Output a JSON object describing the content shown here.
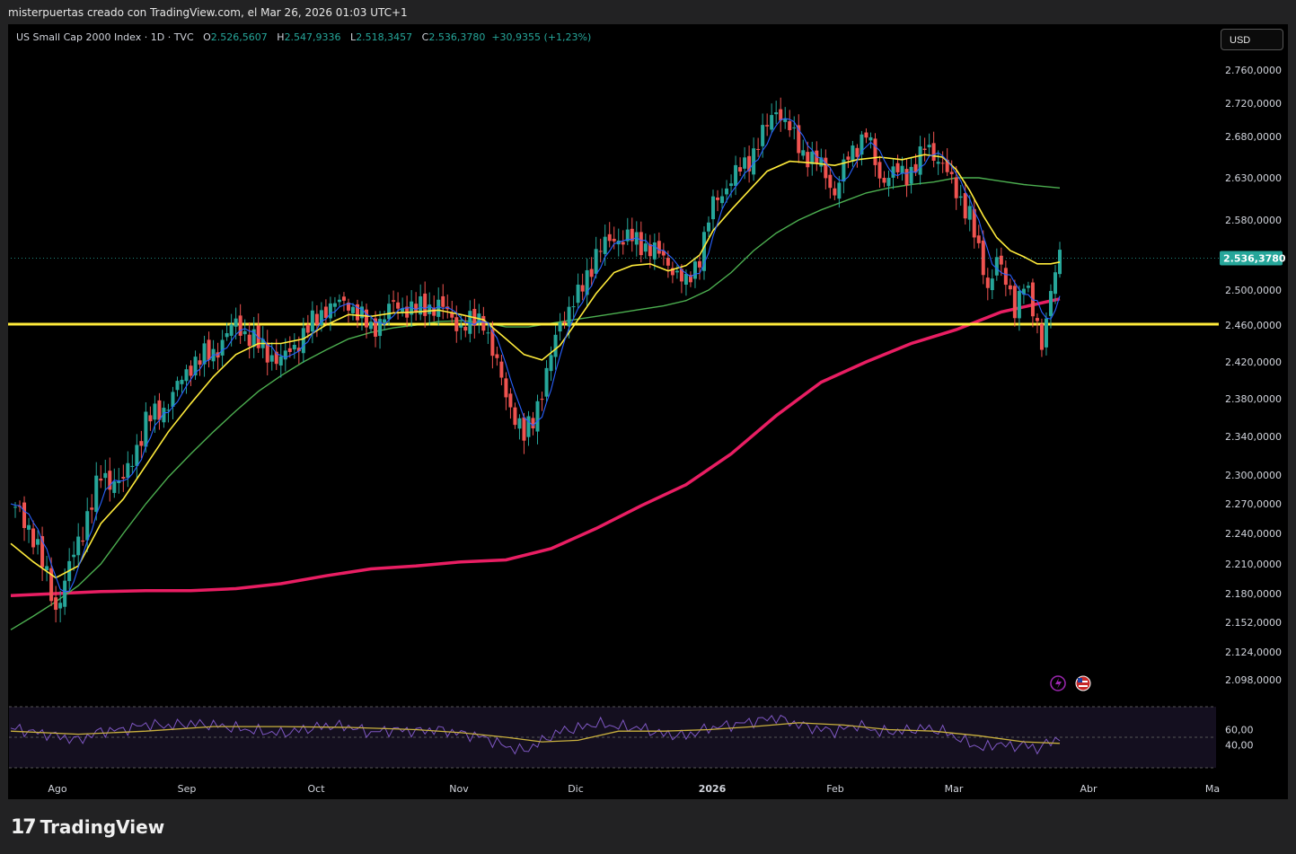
{
  "header": {
    "caption": "misterpuertas creado con TradingView.com, el Mar 26, 2026 01:03 UTC+1"
  },
  "legend": {
    "symbol": "US Small Cap 2000 Index · 1D · TVC",
    "o_label": "O",
    "o": "2.526,5607",
    "h_label": "H",
    "h": "2.547,9336",
    "l_label": "L",
    "l": "2.518,3457",
    "c_label": "C",
    "c": "2.536,3780",
    "change": "+30,9355 (+1,23%)"
  },
  "currency_button": "USD",
  "brand": {
    "name": "TradingView"
  },
  "colors": {
    "up": "#26a69a",
    "down": "#ef5350",
    "sma_short": "#2962ff",
    "sma_mid": "#ffeb3b",
    "sma_long": "#4caf50",
    "sma_200": "#e91e63",
    "support": "#ffeb3b",
    "rsi": "#7e57c2",
    "rsi_ma": "#c9b03e"
  },
  "chart_data": [
    {
      "type": "candlestick",
      "title": "US Small Cap 2000 Index",
      "yticks": [
        "2.760,0000",
        "2.720,0000",
        "2.680,0000",
        "2.630,0000",
        "2.580,0000",
        "2.500,0000",
        "2.460,0000",
        "2.420,0000",
        "2.380,0000",
        "2.340,0000",
        "2.300,0000",
        "2.270,0000",
        "2.240,0000",
        "2.210,0000",
        "2.180,0000",
        "2.152,0000",
        "2.124,0000",
        "2.098,0000"
      ],
      "ytick_values": [
        2760,
        2720,
        2680,
        2630,
        2580,
        2500,
        2460,
        2420,
        2380,
        2340,
        2300,
        2270,
        2240,
        2210,
        2180,
        2152,
        2124,
        2098
      ],
      "xticks": [
        "Ago",
        "Sep",
        "Oct",
        "Nov",
        "Dic",
        "2026",
        "Feb",
        "Mar",
        "Abr",
        "Ma"
      ],
      "ylim": [
        2080,
        2790
      ],
      "last_price_label": "2.536,3780",
      "last_price": 2536.378,
      "support_level": 2461,
      "close_points": [
        [
          0,
          2270
        ],
        [
          10,
          2240
        ],
        [
          20,
          2165
        ],
        [
          30,
          2232
        ],
        [
          40,
          2298
        ],
        [
          50,
          2292
        ],
        [
          60,
          2355
        ],
        [
          70,
          2375
        ],
        [
          80,
          2418
        ],
        [
          90,
          2430
        ],
        [
          100,
          2462
        ],
        [
          110,
          2438
        ],
        [
          120,
          2420
        ],
        [
          130,
          2450
        ],
        [
          140,
          2480
        ],
        [
          150,
          2486
        ],
        [
          160,
          2455
        ],
        [
          170,
          2482
        ],
        [
          180,
          2478
        ],
        [
          190,
          2483
        ],
        [
          200,
          2458
        ],
        [
          210,
          2468
        ],
        [
          214,
          2430
        ],
        [
          220,
          2385
        ],
        [
          228,
          2338
        ],
        [
          232,
          2360
        ],
        [
          238,
          2405
        ],
        [
          244,
          2465
        ],
        [
          252,
          2492
        ],
        [
          260,
          2542
        ],
        [
          268,
          2560
        ],
        [
          276,
          2558
        ],
        [
          284,
          2548
        ],
        [
          292,
          2532
        ],
        [
          300,
          2505
        ],
        [
          306,
          2540
        ],
        [
          312,
          2598
        ],
        [
          320,
          2628
        ],
        [
          328,
          2652
        ],
        [
          336,
          2692
        ],
        [
          340,
          2715
        ],
        [
          346,
          2688
        ],
        [
          352,
          2660
        ],
        [
          360,
          2645
        ],
        [
          366,
          2612
        ],
        [
          372,
          2655
        ],
        [
          380,
          2685
        ],
        [
          386,
          2628
        ],
        [
          392,
          2638
        ],
        [
          398,
          2632
        ],
        [
          406,
          2665
        ],
        [
          414,
          2650
        ],
        [
          420,
          2610
        ],
        [
          426,
          2590
        ],
        [
          430,
          2540
        ],
        [
          434,
          2502
        ],
        [
          438,
          2540
        ],
        [
          442,
          2505
        ],
        [
          446,
          2480
        ],
        [
          450,
          2512
        ],
        [
          454,
          2472
        ],
        [
          458,
          2442
        ],
        [
          462,
          2500
        ],
        [
          466,
          2536
        ]
      ],
      "sma20": [
        [
          0,
          2230
        ],
        [
          10,
          2212
        ],
        [
          20,
          2196
        ],
        [
          30,
          2208
        ],
        [
          40,
          2250
        ],
        [
          50,
          2275
        ],
        [
          60,
          2310
        ],
        [
          70,
          2345
        ],
        [
          80,
          2375
        ],
        [
          90,
          2404
        ],
        [
          100,
          2428
        ],
        [
          110,
          2440
        ],
        [
          120,
          2440
        ],
        [
          130,
          2445
        ],
        [
          140,
          2460
        ],
        [
          150,
          2472
        ],
        [
          160,
          2470
        ],
        [
          170,
          2474
        ],
        [
          180,
          2475
        ],
        [
          190,
          2477
        ],
        [
          200,
          2472
        ],
        [
          210,
          2466
        ],
        [
          220,
          2445
        ],
        [
          228,
          2428
        ],
        [
          236,
          2422
        ],
        [
          244,
          2438
        ],
        [
          252,
          2466
        ],
        [
          260,
          2496
        ],
        [
          268,
          2520
        ],
        [
          276,
          2528
        ],
        [
          284,
          2530
        ],
        [
          292,
          2522
        ],
        [
          300,
          2528
        ],
        [
          306,
          2540
        ],
        [
          312,
          2568
        ],
        [
          320,
          2592
        ],
        [
          328,
          2615
        ],
        [
          336,
          2638
        ],
        [
          346,
          2650
        ],
        [
          356,
          2648
        ],
        [
          366,
          2645
        ],
        [
          376,
          2652
        ],
        [
          386,
          2655
        ],
        [
          396,
          2652
        ],
        [
          406,
          2658
        ],
        [
          414,
          2655
        ],
        [
          420,
          2640
        ],
        [
          426,
          2615
        ],
        [
          432,
          2585
        ],
        [
          438,
          2560
        ],
        [
          444,
          2545
        ],
        [
          450,
          2538
        ],
        [
          456,
          2530
        ],
        [
          462,
          2530
        ],
        [
          466,
          2532
        ]
      ],
      "sma50": [
        [
          0,
          2145
        ],
        [
          10,
          2158
        ],
        [
          20,
          2172
        ],
        [
          30,
          2188
        ],
        [
          40,
          2210
        ],
        [
          50,
          2240
        ],
        [
          60,
          2270
        ],
        [
          70,
          2298
        ],
        [
          80,
          2322
        ],
        [
          90,
          2345
        ],
        [
          100,
          2367
        ],
        [
          110,
          2388
        ],
        [
          120,
          2405
        ],
        [
          130,
          2420
        ],
        [
          140,
          2433
        ],
        [
          150,
          2445
        ],
        [
          160,
          2452
        ],
        [
          170,
          2457
        ],
        [
          180,
          2460
        ],
        [
          190,
          2464
        ],
        [
          200,
          2465
        ],
        [
          210,
          2463
        ],
        [
          220,
          2458
        ],
        [
          230,
          2458
        ],
        [
          240,
          2462
        ],
        [
          250,
          2466
        ],
        [
          260,
          2470
        ],
        [
          270,
          2474
        ],
        [
          280,
          2478
        ],
        [
          290,
          2482
        ],
        [
          300,
          2488
        ],
        [
          310,
          2500
        ],
        [
          320,
          2520
        ],
        [
          330,
          2545
        ],
        [
          340,
          2565
        ],
        [
          350,
          2580
        ],
        [
          360,
          2592
        ],
        [
          370,
          2602
        ],
        [
          380,
          2612
        ],
        [
          390,
          2618
        ],
        [
          400,
          2622
        ],
        [
          410,
          2625
        ],
        [
          420,
          2630
        ],
        [
          430,
          2630
        ],
        [
          440,
          2626
        ],
        [
          450,
          2622
        ],
        [
          466,
          2618
        ]
      ],
      "sma200": [
        [
          0,
          2178
        ],
        [
          20,
          2180
        ],
        [
          40,
          2182
        ],
        [
          60,
          2183
        ],
        [
          80,
          2183
        ],
        [
          100,
          2185
        ],
        [
          120,
          2190
        ],
        [
          140,
          2198
        ],
        [
          160,
          2205
        ],
        [
          180,
          2208
        ],
        [
          200,
          2212
        ],
        [
          220,
          2214
        ],
        [
          240,
          2225
        ],
        [
          260,
          2245
        ],
        [
          280,
          2268
        ],
        [
          300,
          2290
        ],
        [
          320,
          2322
        ],
        [
          340,
          2362
        ],
        [
          360,
          2398
        ],
        [
          380,
          2420
        ],
        [
          400,
          2440
        ],
        [
          420,
          2455
        ],
        [
          440,
          2475
        ],
        [
          466,
          2490
        ]
      ]
    },
    {
      "type": "line",
      "title": "RSI",
      "yticks": [
        "60,00",
        "40,00"
      ],
      "ytick_values": [
        60,
        40
      ],
      "ylim": [
        10,
        90
      ],
      "rsi": [
        [
          0,
          62
        ],
        [
          20,
          52
        ],
        [
          30,
          46
        ],
        [
          40,
          58
        ],
        [
          50,
          60
        ],
        [
          60,
          67
        ],
        [
          70,
          65
        ],
        [
          80,
          68
        ],
        [
          90,
          66
        ],
        [
          100,
          62
        ],
        [
          110,
          58
        ],
        [
          120,
          55
        ],
        [
          130,
          60
        ],
        [
          140,
          65
        ],
        [
          150,
          64
        ],
        [
          160,
          56
        ],
        [
          170,
          60
        ],
        [
          180,
          58
        ],
        [
          190,
          60
        ],
        [
          200,
          55
        ],
        [
          210,
          50
        ],
        [
          220,
          38
        ],
        [
          228,
          32
        ],
        [
          236,
          45
        ],
        [
          244,
          58
        ],
        [
          252,
          62
        ],
        [
          260,
          68
        ],
        [
          270,
          64
        ],
        [
          280,
          62
        ],
        [
          290,
          54
        ],
        [
          300,
          52
        ],
        [
          310,
          62
        ],
        [
          320,
          66
        ],
        [
          330,
          71
        ],
        [
          340,
          76
        ],
        [
          346,
          70
        ],
        [
          356,
          62
        ],
        [
          366,
          58
        ],
        [
          376,
          66
        ],
        [
          386,
          57
        ],
        [
          396,
          58
        ],
        [
          406,
          62
        ],
        [
          414,
          58
        ],
        [
          420,
          50
        ],
        [
          426,
          42
        ],
        [
          432,
          35
        ],
        [
          438,
          42
        ],
        [
          444,
          38
        ],
        [
          450,
          40
        ],
        [
          456,
          35
        ],
        [
          462,
          44
        ],
        [
          466,
          50
        ]
      ],
      "rsi_ma": [
        [
          0,
          58
        ],
        [
          30,
          54
        ],
        [
          60,
          58
        ],
        [
          90,
          64
        ],
        [
          120,
          64
        ],
        [
          150,
          63
        ],
        [
          180,
          60
        ],
        [
          200,
          56
        ],
        [
          220,
          50
        ],
        [
          236,
          44
        ],
        [
          252,
          46
        ],
        [
          270,
          58
        ],
        [
          290,
          58
        ],
        [
          310,
          60
        ],
        [
          330,
          64
        ],
        [
          350,
          69
        ],
        [
          370,
          66
        ],
        [
          390,
          60
        ],
        [
          410,
          58
        ],
        [
          430,
          52
        ],
        [
          450,
          44
        ],
        [
          466,
          42
        ]
      ]
    }
  ]
}
